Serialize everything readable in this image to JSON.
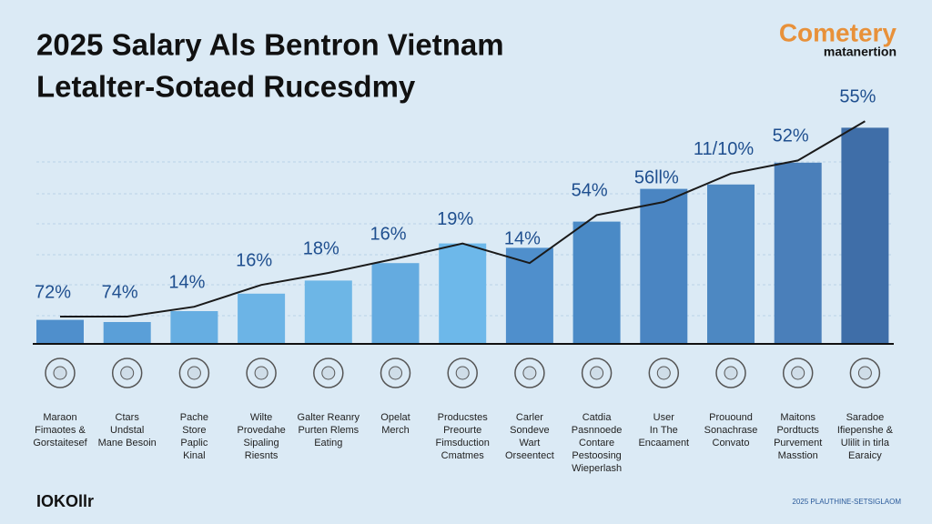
{
  "chart_data": {
    "type": "bar",
    "title": [
      "2025 Salary Als Bentron Vietnam",
      "Letalter-Sotaed Rucesdmy"
    ],
    "logo": [
      "Cometery",
      "matanertion"
    ],
    "footer_left": "IOKOllr",
    "footer_right": "2025 PLAUTHINE-SETSIGLAOM",
    "categories": [
      "Maraon\nFimaotes &\nGorstaitesef",
      "Ctars\nUndstal\nMane Besoin",
      "Pache\nStore\nPaplic\nKinal",
      "Wilte\nProvedahe\nSipaling\nRiesnts",
      "Galter Reanry\nPurten Rlems\nEating",
      "Opelat\nMerch",
      "Producstes\nPreourte\nFimsduction\nCmatmes",
      "Carler\nSondeve\nWart\nOrseentect",
      "Catdia\nPasnnoede\nContare\nPestoosing\nWieperlash",
      "User\nIn The\nEncaament",
      "Prouound\nSonachrase\nConvato",
      "Maitons\nPordtucts\nPurvement\nMasstion",
      "Saradoe\nIfiepenshe &\nUlilit in tirla\nEaraicy"
    ],
    "values": [
      11,
      10,
      15,
      23,
      29,
      37,
      46,
      44,
      56,
      71,
      73,
      83,
      99
    ],
    "trend": [
      12.5,
      12.5,
      17,
      27,
      32.5,
      39,
      46,
      37,
      59,
      65,
      78,
      84,
      102
    ],
    "annotations": [
      "72%",
      "74%",
      "14%",
      "16%",
      "18%",
      "16%",
      "19%",
      "14%",
      "54%",
      "56ll%",
      "11/10%",
      "52%",
      "55%"
    ],
    "colors": [
      "#4f8fcc",
      "#5a9fd8",
      "#66aee2",
      "#6cb4e6",
      "#6db6e6",
      "#64abe0",
      "#6db8ea",
      "#4f8fcc",
      "#4a8ac6",
      "#4a85c2",
      "#4d88c2",
      "#4a7fba",
      "#3f6ea8"
    ],
    "line_color": "#1a1a1a",
    "ylim": [
      0,
      105
    ]
  }
}
